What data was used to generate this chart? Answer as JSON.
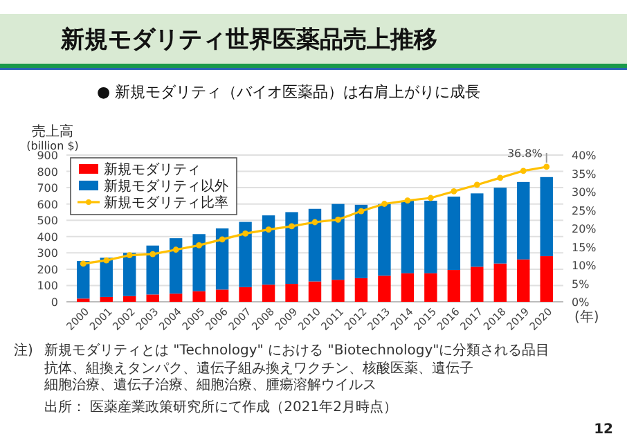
{
  "chart_data": {
    "type": "bar",
    "title": "新規モダリティ世界医薬品売上推移",
    "subtitle": "● 新規モダリティ（バイオ医薬品）は右肩上がりに成長",
    "ylabel": "売上高\n(billion $)",
    "xlabel": "(年)",
    "categories": [
      "2000",
      "2001",
      "2002",
      "2003",
      "2004",
      "2005",
      "2006",
      "2007",
      "2008",
      "2009",
      "2010",
      "2011",
      "2012",
      "2013",
      "2014",
      "2015",
      "2016",
      "2017",
      "2018",
      "2019",
      "2020"
    ],
    "stacked": true,
    "series": [
      {
        "name": "新規モダリティ",
        "color": "#ff0000",
        "values": [
          20,
          30,
          35,
          45,
          50,
          65,
          75,
          90,
          105,
          110,
          125,
          135,
          145,
          160,
          175,
          175,
          195,
          215,
          235,
          260,
          280
        ]
      },
      {
        "name": "新規モダリティ以外",
        "color": "#0070c0",
        "values": [
          230,
          240,
          265,
          300,
          340,
          350,
          375,
          400,
          425,
          440,
          445,
          465,
          450,
          440,
          445,
          445,
          450,
          450,
          465,
          475,
          485
        ]
      },
      {
        "name": "新規モダリティ比率",
        "type": "line",
        "axis": "y2",
        "color": "#ffc000",
        "marker": "circle",
        "values": [
          10.4,
          11.3,
          12.7,
          13.0,
          14.2,
          15.4,
          17.0,
          18.6,
          19.7,
          20.6,
          21.7,
          22.4,
          24.7,
          26.7,
          27.6,
          28.3,
          30.1,
          31.9,
          33.8,
          35.7,
          36.8
        ]
      }
    ],
    "ylim": [
      0,
      900
    ],
    "yticks": [
      0,
      100,
      200,
      300,
      400,
      500,
      600,
      700,
      800,
      900
    ],
    "y2lim": [
      0,
      40
    ],
    "y2ticks": [
      {
        "value": 0,
        "label": "0%"
      },
      {
        "value": 5,
        "label": "5%"
      },
      {
        "value": 10,
        "label": "10%"
      },
      {
        "value": 15,
        "label": "15%"
      },
      {
        "value": 20,
        "label": "20%"
      },
      {
        "value": 25,
        "label": "25%"
      },
      {
        "value": 30,
        "label": "30%"
      },
      {
        "value": 35,
        "label": "35%"
      },
      {
        "value": 40,
        "label": "40%"
      }
    ],
    "grid": "y",
    "legend": "top left",
    "annotations": [
      "36.8%",
      "注)",
      "新規モダリティとは \"Technology\" における \"Biotechnology\"に分類される品目",
      "抗体、組換えタンパク、遺伝子組み換えワクチン、核酸医薬、遺伝子細胞治療、遺伝子治療、細胞治療、腫瘍溶解ウイルス",
      "出所： 医薬産業政策研究所にて作成（2021年2月時点）",
      "12"
    ]
  }
}
